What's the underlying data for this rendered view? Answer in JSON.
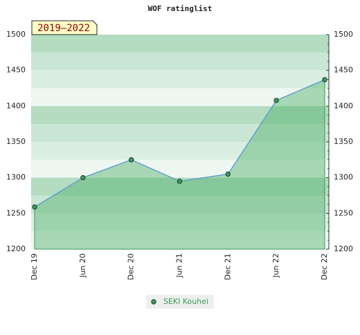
{
  "chart_data": {
    "type": "line",
    "title": "WOF ratinglist",
    "annotation": "2019–2022",
    "categories": [
      "Dec 19",
      "Jun 20",
      "Dec 20",
      "Jun 21",
      "Dec 21",
      "Jun 22",
      "Dec 22"
    ],
    "series": [
      {
        "name": "SEKI Kouhei",
        "color": "#3a9a5a",
        "values": [
          1259,
          1300,
          1325,
          1295,
          1305,
          1408,
          1437
        ]
      }
    ],
    "ylim": [
      1200,
      1500
    ],
    "yticks": [
      1200,
      1250,
      1300,
      1350,
      1400,
      1450,
      1500
    ],
    "y2lim": [
      1200,
      1500
    ],
    "y2ticks": [
      1200,
      1250,
      1300,
      1350,
      1400,
      1450,
      1500
    ]
  }
}
